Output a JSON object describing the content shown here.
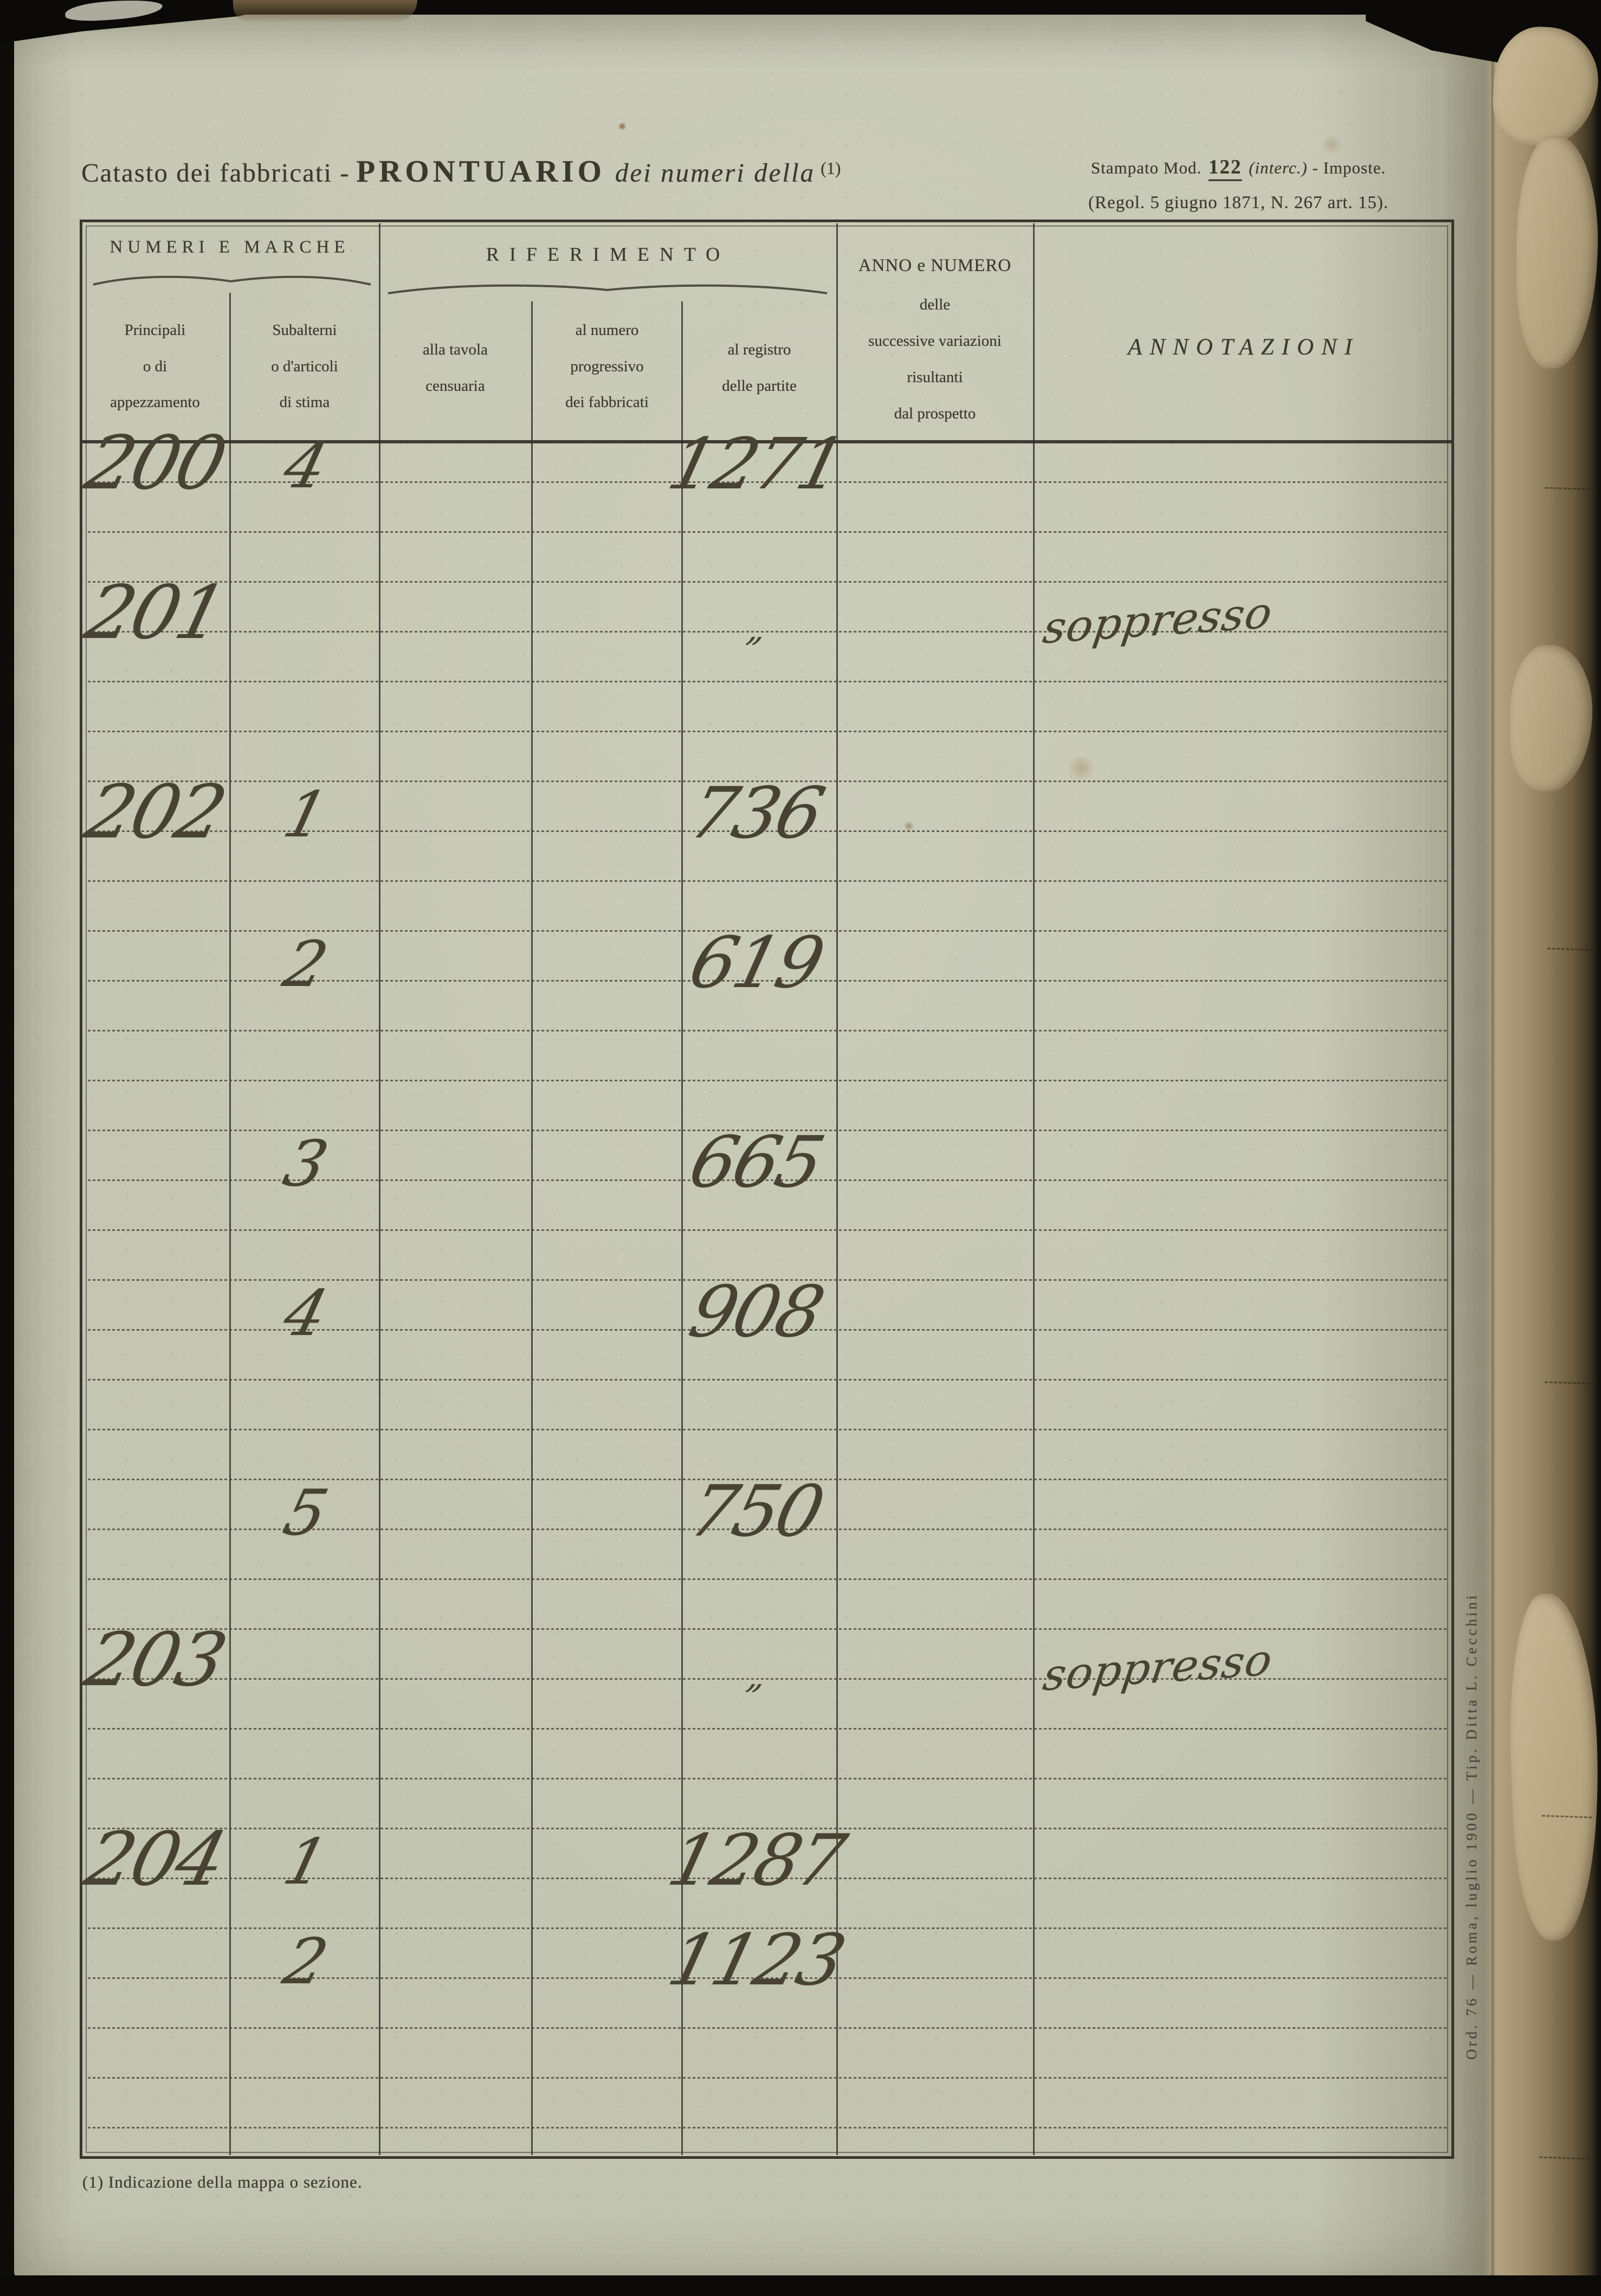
{
  "header": {
    "title_prefix": "Catasto dei fabbricati",
    "title_dash": "-",
    "title_main": "PRONTUARIO",
    "title_suffix": "dei numeri della",
    "title_ref": "(1)",
    "stamp_pre": "Stampato Mod.",
    "stamp_number": "122",
    "stamp_interc": "(interc.)",
    "stamp_tail": "- Imposte.",
    "stamp_regulation": "(Regol. 5 giugno 1871, N. 267 art. 15)."
  },
  "table": {
    "group_numeri": "NUMERI E MARCHE",
    "group_riferimento": "RIFERIMENTO",
    "col_principali": "Principali\no di\nappezzamento",
    "col_subalterni": "Subalterni\no d'articoli\ndi stima",
    "col_tavola": "alla tavola\ncensuaria",
    "col_numero": "al numero\nprogressivo\ndei fabbricati",
    "col_registro": "al registro\ndelle partite",
    "col_anno": "ANNO e NUMERO\ndelle\nsuccessive variazioni\nrisultanti\ndal prospetto",
    "col_annotazioni": "ANNOTAZIONI"
  },
  "entries": [
    {
      "row": 0,
      "principale": "200",
      "subalterno": "4",
      "registro": "1271"
    },
    {
      "row": 3,
      "principale": "201",
      "registro": "„",
      "annotazione": "soppresso"
    },
    {
      "row": 7,
      "principale": "202",
      "subalterno": "1",
      "registro": "736"
    },
    {
      "row": 10,
      "subalterno": "2",
      "registro": "619"
    },
    {
      "row": 14,
      "subalterno": "3",
      "registro": "665"
    },
    {
      "row": 17,
      "subalterno": "4",
      "registro": "908"
    },
    {
      "row": 21,
      "subalterno": "5",
      "registro": "750"
    },
    {
      "row": 24,
      "principale": "203",
      "registro": "„",
      "annotazione": "soppresso"
    },
    {
      "row": 28,
      "principale": "204",
      "subalterno": "1",
      "registro": "1287"
    },
    {
      "row": 30,
      "subalterno": "2",
      "registro": "1123"
    }
  ],
  "footer": {
    "footnote": "(1) Indicazione della mappa o sezione.",
    "printer_note": "Ord. 76 — Roma, luglio 1900 — Tip. Ditta L. Cecchini"
  },
  "colors": {
    "paper": "#c7c9b6",
    "printed_ink": "#3b392e",
    "handwriting_ink": "#474233",
    "book_edge_tan": "#ad9d7d",
    "photo_background": "#0b0a08"
  }
}
